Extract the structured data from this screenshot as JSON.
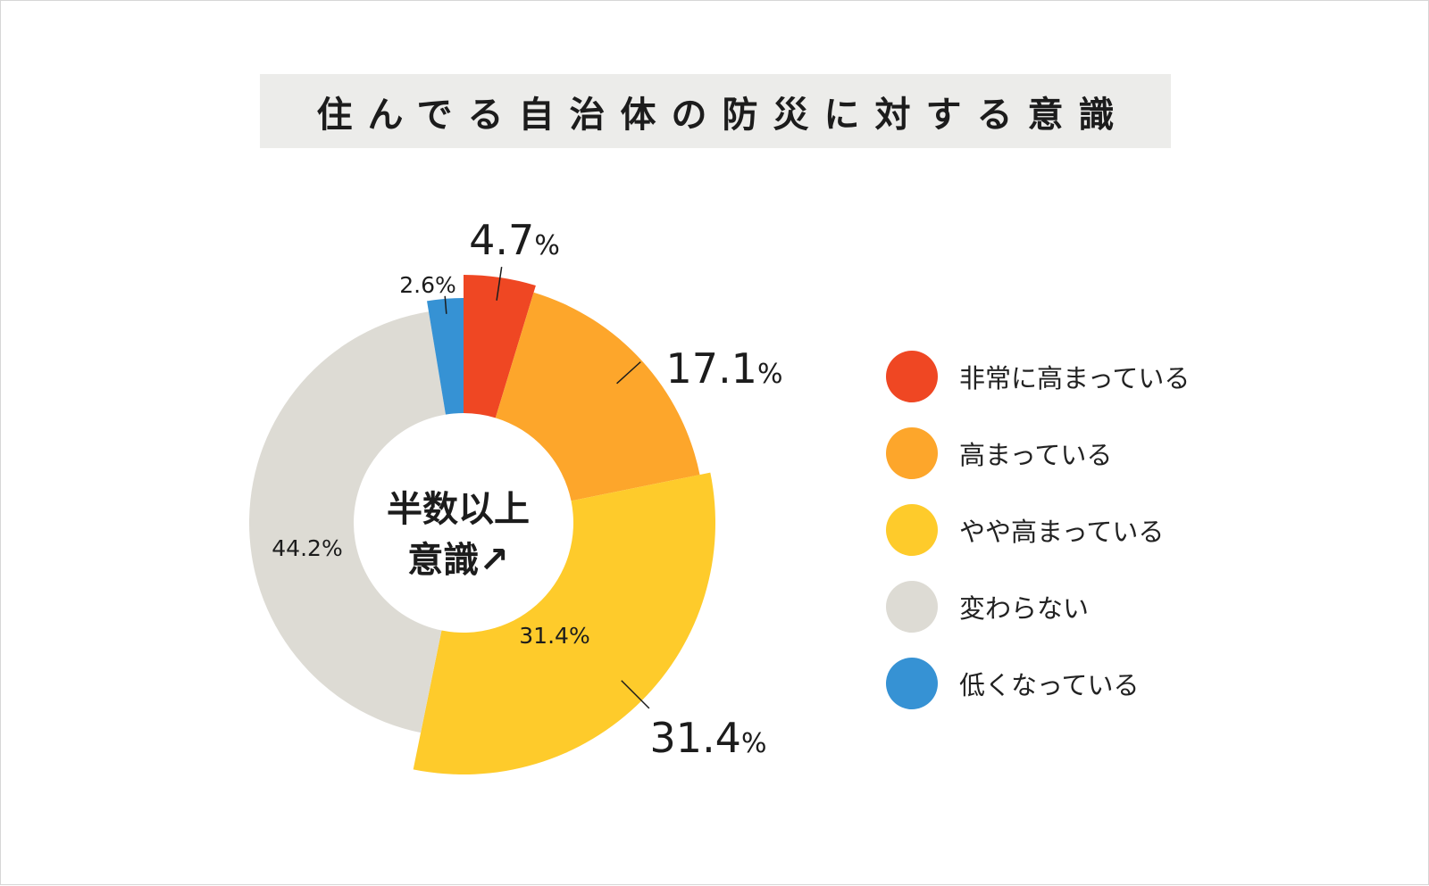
{
  "title": "住んでる自治体の防災に対する意識",
  "center_label": [
    "半数以上",
    "意識↗"
  ],
  "chart_data": {
    "type": "pie",
    "title": "住んでる自治体の防災に対する意識",
    "categories": [
      "非常に高まっている",
      "高まっている",
      "やや高まっている",
      "変わらない",
      "低くなっている"
    ],
    "values": [
      4.7,
      17.1,
      31.4,
      44.2,
      2.6
    ],
    "unit": "%",
    "colors": [
      "#ef4723",
      "#fda62b",
      "#fecb2b",
      "#dddbd4",
      "#3692d4"
    ],
    "data_labels": [
      "4.7%",
      "17.1%",
      "31.4%",
      "44.2%",
      "2.6%"
    ],
    "inner_label": "31.4%",
    "legend_position": "right"
  },
  "legend": [
    {
      "label": "非常に高まっている",
      "color": "#ef4723"
    },
    {
      "label": "高まっている",
      "color": "#fda62b"
    },
    {
      "label": "やや高まっている",
      "color": "#fecb2b"
    },
    {
      "label": "変わらない",
      "color": "#dddbd4"
    },
    {
      "label": "低くなっている",
      "color": "#3692d4"
    }
  ]
}
